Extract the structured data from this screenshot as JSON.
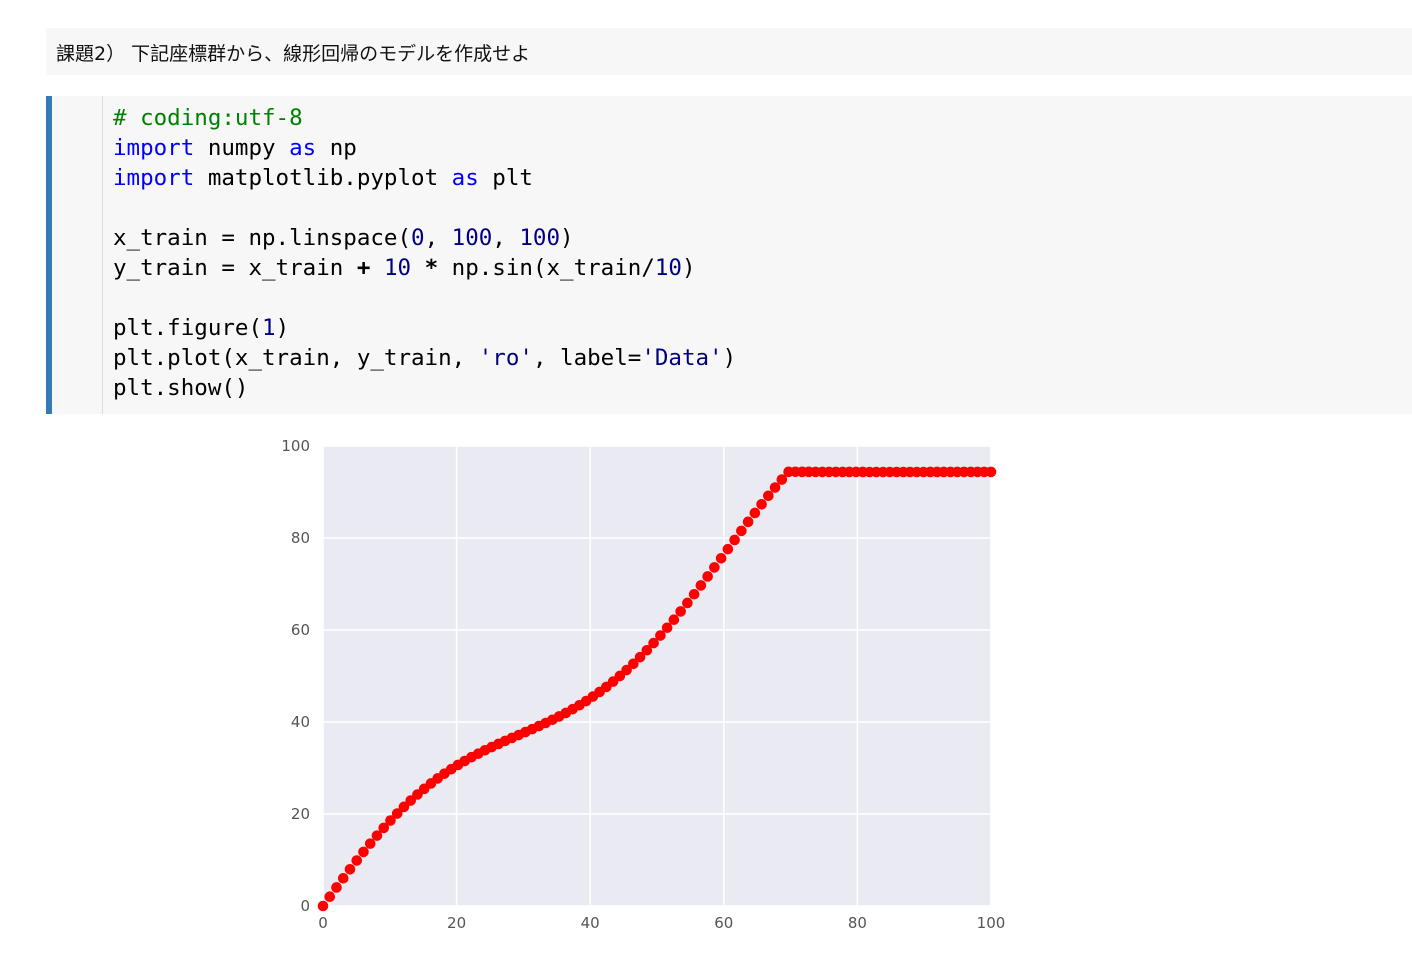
{
  "markdown": {
    "text": "課題2） 下記座標群から、線形回帰のモデルを作成せよ"
  },
  "code": {
    "lines": [
      "# coding:utf-8",
      "import numpy as np",
      "import matplotlib.pyplot as plt",
      "",
      "x_train = np.linspace(0, 100, 100)",
      "y_train = x_train + 10 * np.sin(x_train/10)",
      "",
      "plt.figure(1)",
      "plt.plot(x_train, y_train, 'ro', label='Data')",
      "plt.show()"
    ]
  },
  "colors": {
    "accent": "#337ab7",
    "marker": "#ff0000",
    "plot_background": "#eaeaf2",
    "grid": "#ffffff"
  },
  "chart_data": {
    "type": "scatter",
    "title": "",
    "xlabel": "",
    "ylabel": "",
    "xlim": [
      0,
      100
    ],
    "ylim": [
      0,
      100
    ],
    "x_ticks": [
      0,
      20,
      40,
      60,
      80,
      100
    ],
    "y_ticks": [
      0,
      20,
      40,
      60,
      80,
      100
    ],
    "grid": true,
    "legend": "none",
    "marker": "ro",
    "series": [
      {
        "name": "Data",
        "x": [
          0.0,
          1.01,
          2.02,
          3.03,
          4.04,
          5.05,
          6.06,
          7.07,
          8.08,
          9.09,
          10.1,
          11.11,
          12.12,
          13.13,
          14.14,
          15.15,
          16.16,
          17.17,
          18.18,
          19.19,
          20.2,
          21.21,
          22.22,
          23.23,
          24.24,
          25.25,
          26.26,
          27.27,
          28.28,
          29.29,
          30.3,
          31.31,
          32.32,
          33.33,
          34.34,
          35.35,
          36.36,
          37.37,
          38.38,
          39.39,
          40.4,
          41.41,
          42.42,
          43.43,
          44.44,
          45.45,
          46.46,
          47.47,
          48.48,
          49.49,
          50.51,
          51.52,
          52.53,
          53.54,
          54.55,
          55.56,
          56.57,
          57.58,
          58.59,
          59.6,
          60.61,
          61.62,
          62.63,
          63.64,
          64.65,
          65.66,
          66.67,
          67.68,
          68.69,
          69.7,
          70.71,
          71.72,
          72.73,
          73.74,
          74.75,
          75.76,
          76.77,
          77.78,
          78.79,
          79.8,
          80.81,
          81.82,
          82.83,
          83.84,
          84.85,
          85.86,
          86.87,
          87.88,
          88.89,
          89.9,
          90.91,
          91.92,
          92.93,
          93.94,
          94.95,
          95.96,
          96.97,
          97.98,
          98.99,
          100.0
        ],
        "y": [
          0.0,
          2.02,
          4.03,
          6.02,
          7.98,
          9.89,
          11.76,
          13.56,
          15.3,
          16.98,
          18.58,
          20.1,
          21.56,
          22.93,
          24.24,
          25.47,
          26.64,
          27.74,
          28.77,
          29.74,
          30.66,
          31.52,
          32.34,
          33.11,
          33.85,
          34.55,
          35.23,
          35.89,
          36.53,
          37.17,
          37.81,
          38.45,
          39.11,
          39.78,
          40.48,
          41.21,
          41.98,
          42.79,
          43.64,
          44.55,
          45.52,
          46.54,
          47.63,
          48.79,
          50.01,
          51.3,
          52.66,
          54.1,
          55.6,
          57.16,
          58.8,
          60.49,
          62.24,
          64.04,
          65.88,
          67.77,
          69.69,
          71.64,
          73.61,
          75.59,
          77.58,
          79.57,
          81.55,
          83.51,
          85.44,
          87.33,
          89.18,
          90.98,
          92.71,
          94.38,
          95.97,
          97.47,
          98.89,
          100.21,
          101.43,
          102.54,
          103.55,
          104.44,
          105.23,
          105.9,
          106.46,
          106.91,
          107.25,
          107.49,
          107.62,
          107.66,
          107.6,
          107.46,
          107.24,
          106.94,
          106.58,
          106.16,
          105.69,
          105.18,
          104.65,
          104.09,
          103.52,
          102.95,
          102.39,
          101.84
        ]
      }
    ],
    "y_clip_max": 94.4
  }
}
